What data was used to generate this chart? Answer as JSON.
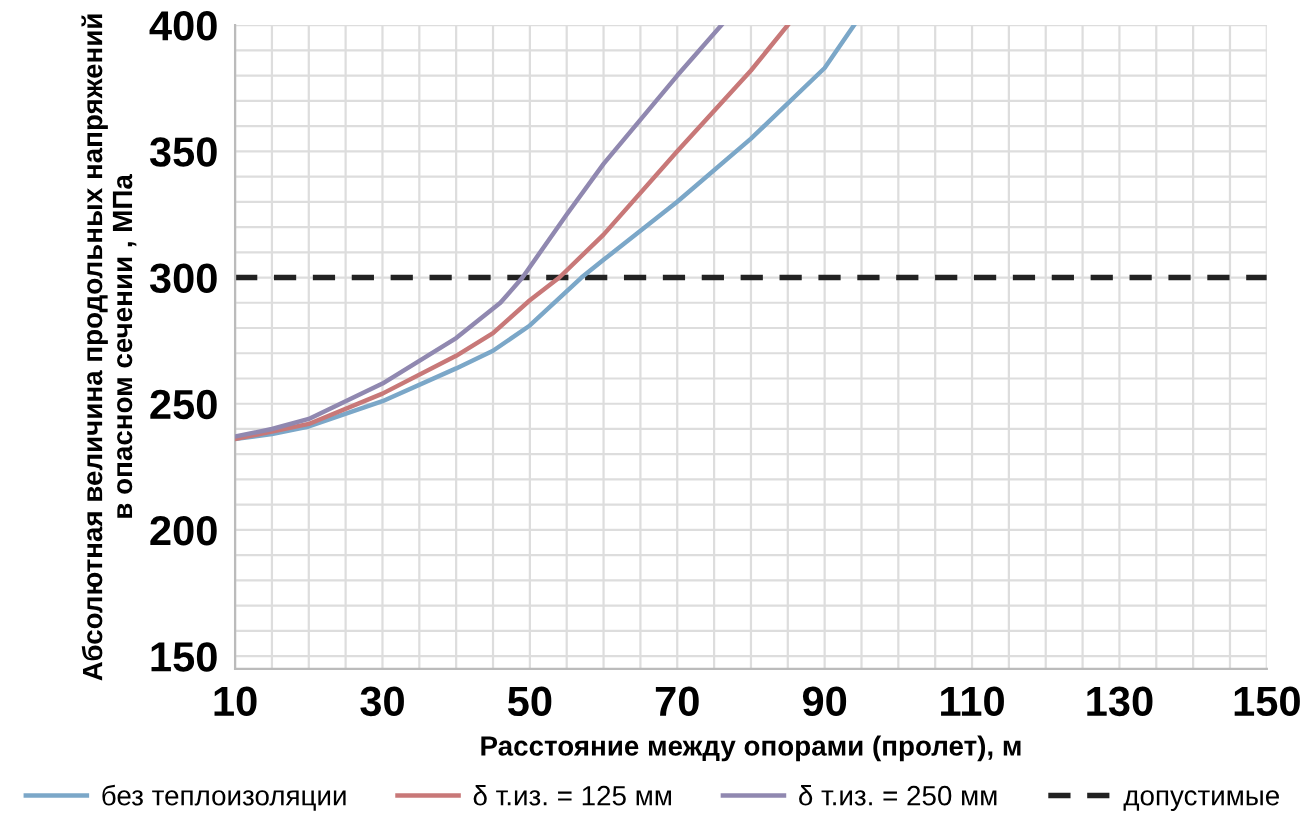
{
  "chart_data": {
    "type": "line",
    "xlabel": "Расстояние между опорами (пролет), м",
    "ylabel": "Абсолютная величина продольных напряжений в опасном сечении , МПа",
    "xlim": [
      10,
      150
    ],
    "ylim": [
      145,
      400
    ],
    "xticks": [
      10,
      {
        "value": 15,
        "label": null
      },
      {
        "value": 20,
        "label": null
      },
      {
        "value": 25,
        "label": null
      },
      30,
      {
        "value": 35,
        "label": null
      },
      {
        "value": 40,
        "label": null
      },
      {
        "value": 45,
        "label": null
      },
      50,
      {
        "value": 55,
        "label": null
      },
      {
        "value": 60,
        "label": null
      },
      {
        "value": 65,
        "label": null
      },
      70,
      {
        "value": 75,
        "label": null
      },
      {
        "value": 80,
        "label": null
      },
      {
        "value": 85,
        "label": null
      },
      90,
      {
        "value": 95,
        "label": null
      },
      {
        "value": 100,
        "label": null
      },
      {
        "value": 105,
        "label": null
      },
      110,
      {
        "value": 115,
        "label": null
      },
      {
        "value": 120,
        "label": null
      },
      {
        "value": 125,
        "label": null
      },
      130,
      {
        "value": 135,
        "label": null
      },
      {
        "value": 140,
        "label": null
      },
      {
        "value": 145,
        "label": null
      },
      150
    ],
    "yticks": [
      150,
      {
        "value": 160,
        "label": null
      },
      {
        "value": 170,
        "label": null
      },
      {
        "value": 180,
        "label": null
      },
      {
        "value": 190,
        "label": null
      },
      200,
      {
        "value": 210,
        "label": null
      },
      {
        "value": 220,
        "label": null
      },
      {
        "value": 230,
        "label": null
      },
      {
        "value": 240,
        "label": null
      },
      250,
      {
        "value": 260,
        "label": null
      },
      {
        "value": 270,
        "label": null
      },
      {
        "value": 280,
        "label": null
      },
      {
        "value": 290,
        "label": null
      },
      300,
      {
        "value": 310,
        "label": null
      },
      {
        "value": 320,
        "label": null
      },
      {
        "value": 330,
        "label": null
      },
      {
        "value": 340,
        "label": null
      },
      350,
      {
        "value": 360,
        "label": null
      },
      {
        "value": 370,
        "label": null
      },
      {
        "value": 380,
        "label": null
      },
      {
        "value": 390,
        "label": null
      },
      400
    ],
    "grid": true,
    "legend": "bottom",
    "marker": "none",
    "series": [
      {
        "name": "без теплоизоляции",
        "color": "#7ba7c8",
        "x": [
          10,
          15,
          20,
          30,
          40,
          45,
          50,
          57,
          60,
          70,
          80,
          90,
          94
        ],
        "values": [
          236,
          238,
          241,
          251,
          264,
          271,
          281,
          300,
          307,
          330,
          355,
          383,
          400
        ]
      },
      {
        "name": "δ т.из. = 125 мм",
        "color": "#c87878",
        "x": [
          10,
          15,
          20,
          30,
          40,
          45,
          50,
          54,
          60,
          70,
          80,
          85
        ],
        "values": [
          236,
          239,
          242,
          254,
          269,
          278,
          291,
          300,
          317,
          350,
          382,
          400
        ]
      },
      {
        "name": "δ т.из. = 250 мм",
        "color": "#9088b0",
        "x": [
          10,
          15,
          20,
          30,
          40,
          46,
          49,
          55,
          60,
          70,
          76
        ],
        "values": [
          237,
          240,
          244,
          258,
          276,
          290,
          300,
          325,
          345,
          380,
          400
        ]
      }
    ],
    "ref_lines": [
      {
        "axis": "y",
        "value": 300,
        "label": "допустимые",
        "color": "#222222",
        "line_style": "dashed"
      }
    ]
  }
}
